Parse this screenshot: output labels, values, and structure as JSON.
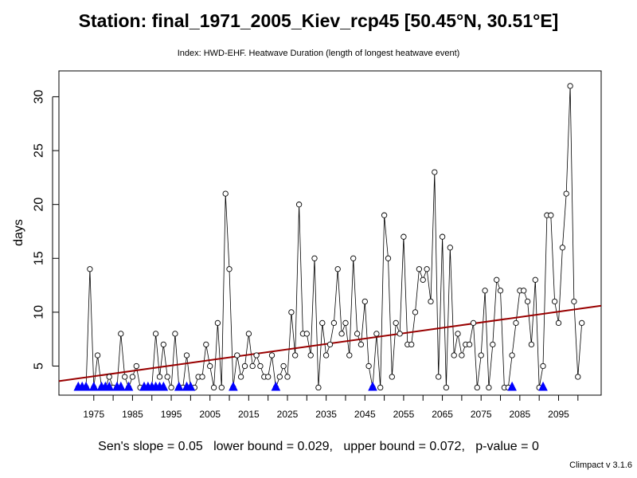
{
  "header": {
    "title": "Station: final_1971_2005_Kiev_rcp45 [50.45°N, 30.51°E]",
    "subtitle": "Index: HWD-EHF. Heatwave Duration (length of longest heatwave event)"
  },
  "footer": {
    "stats": "Sen's slope = 0.05   lower bound = 0.029,   upper bound = 0.072,   p-value = 0",
    "version": "Climpact v 3.1.6"
  },
  "colors": {
    "trend": "#990000",
    "triangle": "#0000ff",
    "line": "#000000"
  },
  "chart_data": {
    "type": "line",
    "ylabel": "days",
    "xlim": [
      1966,
      2106
    ],
    "ylim": [
      2.3,
      32.4
    ],
    "xticks": [
      1975,
      1985,
      1995,
      2005,
      2015,
      2025,
      2035,
      2045,
      2055,
      2065,
      2075,
      2085,
      2095
    ],
    "yticks": [
      5,
      10,
      15,
      20,
      25,
      30
    ],
    "series": [
      {
        "x_start": 1971,
        "values": [
          3,
          3,
          3,
          14,
          3,
          6,
          3,
          3,
          4,
          3,
          3,
          8,
          4,
          3,
          4,
          5,
          3,
          3,
          3,
          3,
          8,
          4,
          7,
          4,
          3,
          8,
          3,
          3,
          6,
          3,
          3,
          4,
          4,
          7,
          5,
          3,
          9,
          3,
          21,
          14,
          3,
          6,
          4,
          5,
          8,
          5,
          6,
          5,
          4,
          4,
          6,
          3,
          4,
          5,
          4,
          10,
          6,
          20,
          8,
          8,
          6,
          15,
          3,
          9,
          6,
          7,
          9,
          14,
          8,
          9,
          6,
          15,
          8,
          7,
          11,
          5,
          3,
          8,
          3,
          19,
          15,
          4,
          9,
          8,
          17,
          7,
          7,
          10,
          14,
          13,
          14,
          11,
          23,
          4,
          17,
          3,
          16,
          6,
          8,
          6,
          7,
          7,
          9,
          3,
          6,
          12,
          3,
          7,
          13,
          12,
          3,
          3,
          6,
          9,
          12,
          12,
          11,
          7,
          13,
          3,
          5,
          19,
          19,
          11,
          9,
          16,
          21,
          31,
          11,
          4,
          9
        ]
      }
    ],
    "trend": {
      "x": [
        1966,
        2106
      ],
      "y": [
        3.6,
        10.6
      ]
    },
    "zero_markers_x": [
      1971,
      1972,
      1973,
      1975,
      1977,
      1978,
      1979,
      1981,
      1982,
      1984,
      1988,
      1989,
      1990,
      1991,
      1992,
      1993,
      1997,
      1999,
      2000,
      2011,
      2022,
      2047,
      2083,
      2091
    ]
  }
}
